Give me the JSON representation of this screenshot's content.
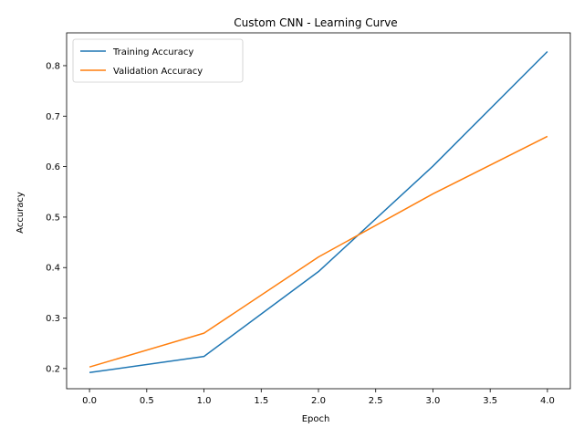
{
  "chart_data": {
    "type": "line",
    "title": "Custom CNN - Learning Curve",
    "xlabel": "Epoch",
    "ylabel": "Accuracy",
    "xlim": [
      -0.2,
      4.2
    ],
    "ylim": [
      0.16,
      0.865
    ],
    "xticks": [
      0.0,
      0.5,
      1.0,
      1.5,
      2.0,
      2.5,
      3.0,
      3.5,
      4.0
    ],
    "xtick_labels": [
      "0.0",
      "0.5",
      "1.0",
      "1.5",
      "2.0",
      "2.5",
      "3.0",
      "3.5",
      "4.0"
    ],
    "yticks": [
      0.2,
      0.3,
      0.4,
      0.5,
      0.6,
      0.7,
      0.8
    ],
    "ytick_labels": [
      "0.2",
      "0.3",
      "0.4",
      "0.5",
      "0.6",
      "0.7",
      "0.8"
    ],
    "grid": false,
    "legend_position": "top-left",
    "x": [
      0,
      1,
      2,
      3,
      4
    ],
    "series": [
      {
        "name": "Training Accuracy",
        "color": "#1f77b4",
        "values": [
          0.192,
          0.224,
          0.392,
          0.601,
          0.828
        ]
      },
      {
        "name": "Validation Accuracy",
        "color": "#ff7f0e",
        "values": [
          0.203,
          0.27,
          0.421,
          0.546,
          0.66
        ]
      }
    ]
  }
}
